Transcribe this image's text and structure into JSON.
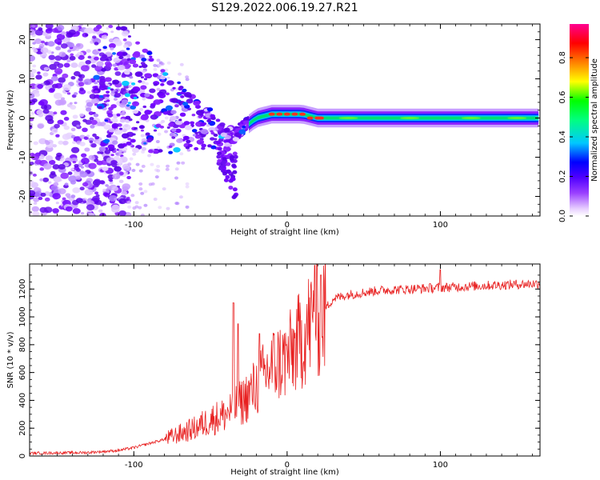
{
  "title": "S129.2022.006.19.27.R21",
  "chart_data": [
    {
      "type": "heatmap",
      "xlabel": "Height of straight line (km)",
      "ylabel": "Frequency (Hz)",
      "xlim": [
        -168,
        165
      ],
      "ylim": [
        -25,
        24
      ],
      "xticks": [
        -100,
        0,
        100
      ],
      "yticks": [
        -20,
        -10,
        0,
        10,
        20
      ],
      "colorbar": {
        "label": "Normalized spectral amplitude",
        "range": [
          0,
          0.97
        ],
        "ticks": [
          0.0,
          0.2,
          0.4,
          0.6,
          0.8
        ],
        "colormap": [
          "#ffffff",
          "#c080ff",
          "#8000ff",
          "#0000ff",
          "#00d0ff",
          "#00ff40",
          "#ffff00",
          "#ff8000",
          "#ff0000",
          "#ff0080"
        ]
      },
      "ridge": {
        "description_points": [
          [
            -110,
            8
          ],
          [
            -100,
            5
          ],
          [
            -90,
            3
          ],
          [
            -80,
            1
          ],
          [
            -70,
            -1
          ],
          [
            -60,
            -2
          ],
          [
            -50,
            -3
          ],
          [
            -40,
            -6
          ],
          [
            -30,
            -3
          ],
          [
            -20,
            0
          ],
          [
            -10,
            1
          ],
          [
            0,
            1
          ],
          [
            10,
            1
          ],
          [
            20,
            0
          ],
          [
            40,
            0
          ],
          [
            100,
            0
          ],
          [
            165,
            0
          ]
        ]
      }
    },
    {
      "type": "line",
      "xlabel": "Height of straight line (km)",
      "ylabel": "SNR (10 * v/v)",
      "xlim": [
        -168,
        165
      ],
      "ylim": [
        0,
        1380
      ],
      "xticks": [
        -100,
        0,
        100
      ],
      "yticks": [
        0,
        200,
        400,
        600,
        800,
        1000,
        1200
      ],
      "color": "#e82020",
      "envelope": {
        "x": [
          -168,
          -130,
          -110,
          -100,
          -90,
          -80,
          -70,
          -60,
          -50,
          -40,
          -35,
          -30,
          -20,
          -10,
          0,
          10,
          15,
          20,
          25,
          30,
          40,
          60,
          80,
          100,
          120,
          140,
          165
        ],
        "y": [
          20,
          25,
          40,
          60,
          90,
          120,
          160,
          200,
          260,
          300,
          350,
          380,
          500,
          650,
          700,
          850,
          950,
          980,
          1060,
          1130,
          1160,
          1190,
          1200,
          1210,
          1220,
          1230,
          1240
        ]
      },
      "spikes": [
        {
          "x": -35,
          "y": 1100
        },
        {
          "x": -32,
          "y": 950
        },
        {
          "x": -18,
          "y": 880
        },
        {
          "x": 18,
          "y": 1370
        },
        {
          "x": 22,
          "y": 1300
        },
        {
          "x": 100,
          "y": 1340
        }
      ]
    }
  ]
}
